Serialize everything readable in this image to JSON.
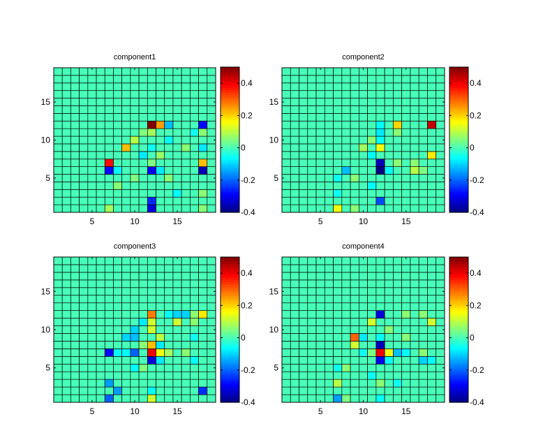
{
  "figure": {
    "background": "#ffffff",
    "colormap": "jet"
  },
  "chart_data": [
    {
      "type": "heatmap",
      "title": "component1",
      "x": {
        "range": [
          1,
          19
        ],
        "ticks": [
          5,
          10,
          15
        ],
        "tick_labels": [
          "5",
          "10",
          "15"
        ]
      },
      "y": {
        "range": [
          1,
          19
        ],
        "ticks": [
          5,
          10,
          15
        ],
        "tick_labels": [
          "5",
          "10",
          "15"
        ]
      },
      "colorbar": {
        "range": [
          -0.4,
          0.5
        ],
        "ticks": [
          -0.4,
          -0.2,
          0,
          0.2,
          0.4
        ],
        "tick_labels": [
          "-0.4",
          "-0.2",
          "0",
          "0.2",
          "0.4"
        ]
      },
      "default_value": 0,
      "grid": true,
      "cells": [
        {
          "x": 12,
          "y": 12,
          "v": 0.5
        },
        {
          "x": 13,
          "y": 12,
          "v": 0.25
        },
        {
          "x": 14,
          "y": 12,
          "v": -0.12
        },
        {
          "x": 18,
          "y": 12,
          "v": -0.28
        },
        {
          "x": 12,
          "y": 11,
          "v": 0.08
        },
        {
          "x": 11,
          "y": 11,
          "v": 0.05
        },
        {
          "x": 17,
          "y": 11,
          "v": -0.05
        },
        {
          "x": 18,
          "y": 11,
          "v": 0.06
        },
        {
          "x": 10,
          "y": 10,
          "v": 0.1
        },
        {
          "x": 14,
          "y": 10,
          "v": -0.06
        },
        {
          "x": 9,
          "y": 9,
          "v": 0.22
        },
        {
          "x": 12,
          "y": 9,
          "v": -0.05
        },
        {
          "x": 16,
          "y": 9,
          "v": 0.06
        },
        {
          "x": 18,
          "y": 9,
          "v": -0.08
        },
        {
          "x": 11,
          "y": 8,
          "v": -0.08
        },
        {
          "x": 13,
          "y": 8,
          "v": 0.07
        },
        {
          "x": 7,
          "y": 7,
          "v": 0.38
        },
        {
          "x": 12,
          "y": 7,
          "v": 0.05
        },
        {
          "x": 18,
          "y": 7,
          "v": 0.22
        },
        {
          "x": 7,
          "y": 6,
          "v": -0.28
        },
        {
          "x": 8,
          "y": 6,
          "v": -0.06
        },
        {
          "x": 12,
          "y": 6,
          "v": -0.3
        },
        {
          "x": 13,
          "y": 6,
          "v": -0.08
        },
        {
          "x": 18,
          "y": 6,
          "v": -0.35
        },
        {
          "x": 10,
          "y": 5,
          "v": 0.05
        },
        {
          "x": 14,
          "y": 5,
          "v": 0.06
        },
        {
          "x": 8,
          "y": 4,
          "v": 0.06
        },
        {
          "x": 15,
          "y": 3,
          "v": -0.06
        },
        {
          "x": 18,
          "y": 3,
          "v": 0.06
        },
        {
          "x": 12,
          "y": 2,
          "v": -0.25
        },
        {
          "x": 12,
          "y": 1,
          "v": -0.32
        },
        {
          "x": 7,
          "y": 1,
          "v": 0.08
        },
        {
          "x": 18,
          "y": 1,
          "v": 0.06
        }
      ]
    },
    {
      "type": "heatmap",
      "title": "component2",
      "x": {
        "range": [
          1,
          19
        ],
        "ticks": [
          5,
          10,
          15
        ],
        "tick_labels": [
          "5",
          "10",
          "15"
        ]
      },
      "y": {
        "range": [
          1,
          19
        ],
        "ticks": [
          5,
          10,
          15
        ],
        "tick_labels": [
          "5",
          "10",
          "15"
        ]
      },
      "colorbar": {
        "range": [
          -0.4,
          0.5
        ],
        "ticks": [
          -0.4,
          -0.2,
          0,
          0.2,
          0.4
        ],
        "tick_labels": [
          "-0.4",
          "-0.2",
          "0",
          "0.2",
          "0.4"
        ]
      },
      "default_value": 0,
      "grid": true,
      "cells": [
        {
          "x": 12,
          "y": 12,
          "v": -0.06
        },
        {
          "x": 14,
          "y": 12,
          "v": 0.2
        },
        {
          "x": 18,
          "y": 12,
          "v": 0.44
        },
        {
          "x": 12,
          "y": 11,
          "v": -0.08
        },
        {
          "x": 14,
          "y": 11,
          "v": 0.06
        },
        {
          "x": 11,
          "y": 10,
          "v": 0.06
        },
        {
          "x": 12,
          "y": 10,
          "v": -0.06
        },
        {
          "x": 10,
          "y": 9,
          "v": 0.08
        },
        {
          "x": 12,
          "y": 9,
          "v": 0.15
        },
        {
          "x": 11,
          "y": 8,
          "v": -0.06
        },
        {
          "x": 18,
          "y": 8,
          "v": 0.18
        },
        {
          "x": 12,
          "y": 7,
          "v": -0.35
        },
        {
          "x": 14,
          "y": 7,
          "v": 0.06
        },
        {
          "x": 16,
          "y": 7,
          "v": 0.06
        },
        {
          "x": 8,
          "y": 6,
          "v": -0.12
        },
        {
          "x": 12,
          "y": 6,
          "v": -0.4
        },
        {
          "x": 13,
          "y": 6,
          "v": -0.06
        },
        {
          "x": 16,
          "y": 6,
          "v": 0.1
        },
        {
          "x": 17,
          "y": 6,
          "v": 0.05
        },
        {
          "x": 7,
          "y": 5,
          "v": -0.05
        },
        {
          "x": 9,
          "y": 5,
          "v": 0.06
        },
        {
          "x": 11,
          "y": 4,
          "v": -0.06
        },
        {
          "x": 7,
          "y": 3,
          "v": -0.05
        },
        {
          "x": 12,
          "y": 2,
          "v": -0.22
        },
        {
          "x": 7,
          "y": 1,
          "v": 0.15
        },
        {
          "x": 9,
          "y": 1,
          "v": 0.06
        }
      ]
    },
    {
      "type": "heatmap",
      "title": "component3",
      "x": {
        "range": [
          1,
          19
        ],
        "ticks": [
          5,
          10,
          15
        ],
        "tick_labels": [
          "5",
          "10",
          "15"
        ]
      },
      "y": {
        "range": [
          1,
          19
        ],
        "ticks": [
          5,
          10,
          15
        ],
        "tick_labels": [
          "5",
          "10",
          "15"
        ]
      },
      "colorbar": {
        "range": [
          -0.4,
          0.5
        ],
        "ticks": [
          -0.4,
          -0.2,
          0,
          0.2,
          0.4
        ],
        "tick_labels": [
          "-0.4",
          "-0.2",
          "0",
          "0.2",
          "0.4"
        ]
      },
      "default_value": 0,
      "grid": true,
      "cells": [
        {
          "x": 12,
          "y": 12,
          "v": 0.28
        },
        {
          "x": 14,
          "y": 12,
          "v": -0.06
        },
        {
          "x": 15,
          "y": 12,
          "v": -0.1
        },
        {
          "x": 16,
          "y": 12,
          "v": -0.1
        },
        {
          "x": 17,
          "y": 12,
          "v": 0.06
        },
        {
          "x": 18,
          "y": 12,
          "v": 0.18
        },
        {
          "x": 11,
          "y": 11,
          "v": -0.08
        },
        {
          "x": 12,
          "y": 11,
          "v": 0.12
        },
        {
          "x": 15,
          "y": 11,
          "v": 0.12
        },
        {
          "x": 17,
          "y": 11,
          "v": 0.06
        },
        {
          "x": 10,
          "y": 10,
          "v": -0.1
        },
        {
          "x": 12,
          "y": 10,
          "v": 0.12
        },
        {
          "x": 9,
          "y": 9,
          "v": -0.1
        },
        {
          "x": 10,
          "y": 9,
          "v": -0.12
        },
        {
          "x": 13,
          "y": 9,
          "v": 0.1
        },
        {
          "x": 17,
          "y": 9,
          "v": -0.05
        },
        {
          "x": 12,
          "y": 8,
          "v": 0.22
        },
        {
          "x": 13,
          "y": 8,
          "v": -0.08
        },
        {
          "x": 11,
          "y": 8,
          "v": 0.06
        },
        {
          "x": 7,
          "y": 7,
          "v": -0.28
        },
        {
          "x": 8,
          "y": 7,
          "v": -0.06
        },
        {
          "x": 9,
          "y": 7,
          "v": -0.06
        },
        {
          "x": 10,
          "y": 7,
          "v": -0.2
        },
        {
          "x": 12,
          "y": 7,
          "v": 0.4
        },
        {
          "x": 13,
          "y": 7,
          "v": 0.15
        },
        {
          "x": 14,
          "y": 7,
          "v": 0.08
        },
        {
          "x": 16,
          "y": 7,
          "v": 0.06
        },
        {
          "x": 12,
          "y": 6,
          "v": -0.32
        },
        {
          "x": 13,
          "y": 6,
          "v": -0.08
        },
        {
          "x": 17,
          "y": 6,
          "v": -0.06
        },
        {
          "x": 10,
          "y": 5,
          "v": -0.06
        },
        {
          "x": 11,
          "y": 5,
          "v": 0.05
        },
        {
          "x": 7,
          "y": 3,
          "v": -0.15
        },
        {
          "x": 8,
          "y": 2,
          "v": -0.15
        },
        {
          "x": 12,
          "y": 2,
          "v": -0.06
        },
        {
          "x": 7,
          "y": 1,
          "v": -0.2
        },
        {
          "x": 12,
          "y": 1,
          "v": 0.12
        },
        {
          "x": 18,
          "y": 2,
          "v": -0.25
        }
      ]
    },
    {
      "type": "heatmap",
      "title": "component4",
      "x": {
        "range": [
          1,
          19
        ],
        "ticks": [
          5,
          10,
          15
        ],
        "tick_labels": [
          "5",
          "10",
          "15"
        ]
      },
      "y": {
        "range": [
          1,
          19
        ],
        "ticks": [
          5,
          10,
          15
        ],
        "tick_labels": [
          "5",
          "10",
          "15"
        ]
      },
      "colorbar": {
        "range": [
          -0.4,
          0.5
        ],
        "ticks": [
          -0.4,
          -0.2,
          0,
          0.2,
          0.4
        ],
        "tick_labels": [
          "-0.4",
          "-0.2",
          "0",
          "0.2",
          "0.4"
        ]
      },
      "default_value": 0,
      "grid": true,
      "cells": [
        {
          "x": 12,
          "y": 12,
          "v": -0.32
        },
        {
          "x": 15,
          "y": 12,
          "v": 0.06
        },
        {
          "x": 17,
          "y": 12,
          "v": 0.06
        },
        {
          "x": 11,
          "y": 11,
          "v": 0.12
        },
        {
          "x": 18,
          "y": 11,
          "v": 0.12
        },
        {
          "x": 13,
          "y": 10,
          "v": 0.06
        },
        {
          "x": 9,
          "y": 9,
          "v": 0.3
        },
        {
          "x": 10,
          "y": 9,
          "v": -0.08
        },
        {
          "x": 12,
          "y": 9,
          "v": -0.06
        },
        {
          "x": 15,
          "y": 9,
          "v": 0.06
        },
        {
          "x": 9,
          "y": 8,
          "v": 0.12
        },
        {
          "x": 12,
          "y": 8,
          "v": -0.35
        },
        {
          "x": 10,
          "y": 7,
          "v": -0.05
        },
        {
          "x": 11,
          "y": 7,
          "v": 0.05
        },
        {
          "x": 12,
          "y": 7,
          "v": 0.4
        },
        {
          "x": 13,
          "y": 7,
          "v": 0.15
        },
        {
          "x": 14,
          "y": 7,
          "v": -0.12
        },
        {
          "x": 15,
          "y": 7,
          "v": -0.06
        },
        {
          "x": 17,
          "y": 7,
          "v": 0.06
        },
        {
          "x": 12,
          "y": 6,
          "v": -0.3
        },
        {
          "x": 13,
          "y": 6,
          "v": -0.06
        },
        {
          "x": 17,
          "y": 6,
          "v": -0.1
        },
        {
          "x": 18,
          "y": 6,
          "v": -0.06
        },
        {
          "x": 7,
          "y": 5,
          "v": -0.05
        },
        {
          "x": 8,
          "y": 5,
          "v": 0.06
        },
        {
          "x": 11,
          "y": 4,
          "v": -0.05
        },
        {
          "x": 7,
          "y": 3,
          "v": 0.1
        },
        {
          "x": 12,
          "y": 3,
          "v": 0.06
        },
        {
          "x": 14,
          "y": 3,
          "v": -0.05
        },
        {
          "x": 7,
          "y": 1,
          "v": -0.15
        },
        {
          "x": 8,
          "y": 1,
          "v": 0.05
        },
        {
          "x": 12,
          "y": 1,
          "v": -0.06
        }
      ]
    }
  ]
}
